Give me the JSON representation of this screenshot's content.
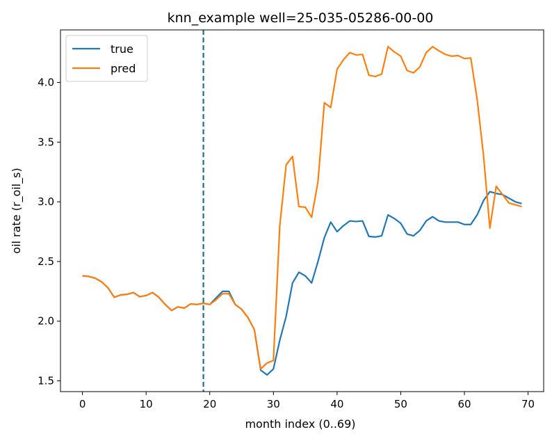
{
  "chart_data": {
    "type": "line",
    "title": "knn_example well=25-035-05286-00-00",
    "xlabel": "month index (0..69)",
    "ylabel": "oil rate (r_oil_s)",
    "xlim": [
      -3.45,
      72.45
    ],
    "ylim": [
      1.41,
      4.44
    ],
    "xticks": [
      0,
      10,
      20,
      30,
      40,
      50,
      60,
      70
    ],
    "xtick_labels": [
      "0",
      "10",
      "20",
      "30",
      "40",
      "50",
      "60",
      "70"
    ],
    "yticks": [
      1.5,
      2.0,
      2.5,
      3.0,
      3.5,
      4.0
    ],
    "ytick_labels": [
      "1.5",
      "2.0",
      "2.5",
      "3.0",
      "3.5",
      "4.0"
    ],
    "grid": false,
    "legend_position": "top-left",
    "vline": {
      "x": 19,
      "color": "#1f6e8c",
      "style": "dashed"
    },
    "x": [
      0,
      1,
      2,
      3,
      4,
      5,
      6,
      7,
      8,
      9,
      10,
      11,
      12,
      13,
      14,
      15,
      16,
      17,
      18,
      19,
      20,
      21,
      22,
      23,
      24,
      25,
      26,
      27,
      28,
      29,
      30,
      31,
      32,
      33,
      34,
      35,
      36,
      37,
      38,
      39,
      40,
      41,
      42,
      43,
      44,
      45,
      46,
      47,
      48,
      49,
      50,
      51,
      52,
      53,
      54,
      55,
      56,
      57,
      58,
      59,
      60,
      61,
      62,
      63,
      64,
      65,
      66,
      67,
      68,
      69
    ],
    "series": [
      {
        "name": "true",
        "color": "#1f77b4",
        "values": [
          2.38,
          2.375,
          2.36,
          2.33,
          2.28,
          2.2,
          2.22,
          2.225,
          2.24,
          2.205,
          2.215,
          2.24,
          2.2,
          2.14,
          2.09,
          2.12,
          2.11,
          2.145,
          2.14,
          2.15,
          2.14,
          2.195,
          2.25,
          2.25,
          2.14,
          2.1,
          2.03,
          1.93,
          1.59,
          1.55,
          1.6,
          1.84,
          2.04,
          2.32,
          2.41,
          2.38,
          2.32,
          2.5,
          2.7,
          2.83,
          2.75,
          2.8,
          2.84,
          2.835,
          2.84,
          2.71,
          2.705,
          2.715,
          2.89,
          2.86,
          2.82,
          2.73,
          2.715,
          2.76,
          2.84,
          2.875,
          2.84,
          2.83,
          2.83,
          2.83,
          2.81,
          2.81,
          2.89,
          3.01,
          3.085,
          3.07,
          3.06,
          3.03,
          3.0,
          2.985
        ]
      },
      {
        "name": "pred",
        "color": "#ff7f0e",
        "values": [
          2.38,
          2.375,
          2.36,
          2.33,
          2.28,
          2.2,
          2.22,
          2.225,
          2.24,
          2.205,
          2.215,
          2.24,
          2.2,
          2.14,
          2.09,
          2.12,
          2.11,
          2.145,
          2.14,
          2.15,
          2.14,
          2.18,
          2.23,
          2.23,
          2.14,
          2.1,
          2.03,
          1.93,
          1.6,
          1.65,
          1.67,
          2.8,
          3.31,
          3.38,
          2.96,
          2.955,
          2.87,
          3.17,
          3.83,
          3.79,
          4.11,
          4.19,
          4.25,
          4.23,
          4.235,
          4.06,
          4.05,
          4.07,
          4.3,
          4.255,
          4.22,
          4.1,
          4.08,
          4.13,
          4.25,
          4.3,
          4.265,
          4.235,
          4.22,
          4.225,
          4.2,
          4.205,
          3.86,
          3.39,
          2.78,
          3.13,
          3.06,
          2.99,
          2.975,
          2.96
        ]
      }
    ]
  }
}
